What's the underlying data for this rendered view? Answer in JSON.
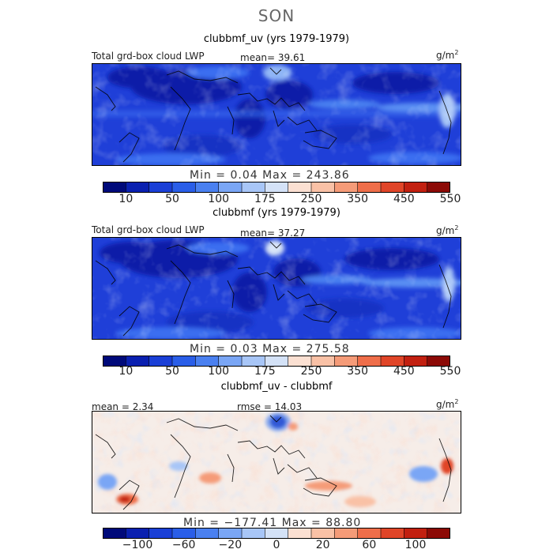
{
  "season": "SON",
  "colors": {
    "main": [
      "#000a7a",
      "#0a20b0",
      "#1a3fd6",
      "#2a5ee8",
      "#4a80f0",
      "#7aa6f5",
      "#a8c6f7",
      "#d4e2f7",
      "#fbe0d2",
      "#f9c1a6",
      "#f59b78",
      "#ef6e4a",
      "#e04528",
      "#c22010",
      "#8c0a06"
    ],
    "diff": [
      "#000a7a",
      "#0a20b0",
      "#1a3fd6",
      "#2a5ee8",
      "#4a80f0",
      "#7aa6f5",
      "#a8c6f7",
      "#d4e2f7",
      "#fbe0d2",
      "#f9c1a6",
      "#f59b78",
      "#ef6e4a",
      "#e04528",
      "#c22010",
      "#8c0a06"
    ]
  },
  "panels": [
    {
      "title": "clubbmf_uv (yrs 1979-1979)",
      "left_label": "Total grd-box cloud LWP",
      "mean_text": "mean=  39.61",
      "units": "g/m",
      "units_sup": "2",
      "minmax": "Min =   0.04  Max = 243.86",
      "ticks": [
        "10",
        "50",
        "100",
        "175",
        "250",
        "350",
        "450",
        "550"
      ]
    },
    {
      "title": "clubbmf (yrs 1979-1979)",
      "left_label": "Total grd-box cloud LWP",
      "mean_text": "mean=  37.27",
      "units": "g/m",
      "units_sup": "2",
      "minmax": "Min =   0.03  Max = 275.58",
      "ticks": [
        "10",
        "50",
        "100",
        "175",
        "250",
        "350",
        "450",
        "550"
      ]
    },
    {
      "title": "clubbmf_uv - clubbmf",
      "left_label": "mean =   2.34",
      "mean_text": "rmse =  14.03",
      "units": "g/m",
      "units_sup": "2",
      "minmax": "Min = −177.41  Max =  88.80",
      "ticks": [
        "−100",
        "−60",
        "−20",
        "0",
        "20",
        "60",
        "100"
      ]
    }
  ],
  "chart_data": [
    {
      "type": "heatmap",
      "title": "clubbmf_uv (yrs 1979-1979)",
      "field": "Total grd-box cloud LWP",
      "units": "g/m2",
      "mean": 39.61,
      "min": 0.04,
      "max": 243.86,
      "levels": [
        10,
        50,
        100,
        175,
        250,
        350,
        450,
        550
      ],
      "colormap": "blue-white-red"
    },
    {
      "type": "heatmap",
      "title": "clubbmf (yrs 1979-1979)",
      "field": "Total grd-box cloud LWP",
      "units": "g/m2",
      "mean": 37.27,
      "min": 0.03,
      "max": 275.58,
      "levels": [
        10,
        50,
        100,
        175,
        250,
        350,
        450,
        550
      ],
      "colormap": "blue-white-red"
    },
    {
      "type": "heatmap",
      "title": "clubbmf_uv - clubbmf",
      "units": "g/m2",
      "mean": 2.34,
      "rmse": 14.03,
      "min": -177.41,
      "max": 88.8,
      "levels": [
        -100,
        -60,
        -20,
        0,
        20,
        60,
        100
      ],
      "colormap": "blue-white-red"
    }
  ]
}
